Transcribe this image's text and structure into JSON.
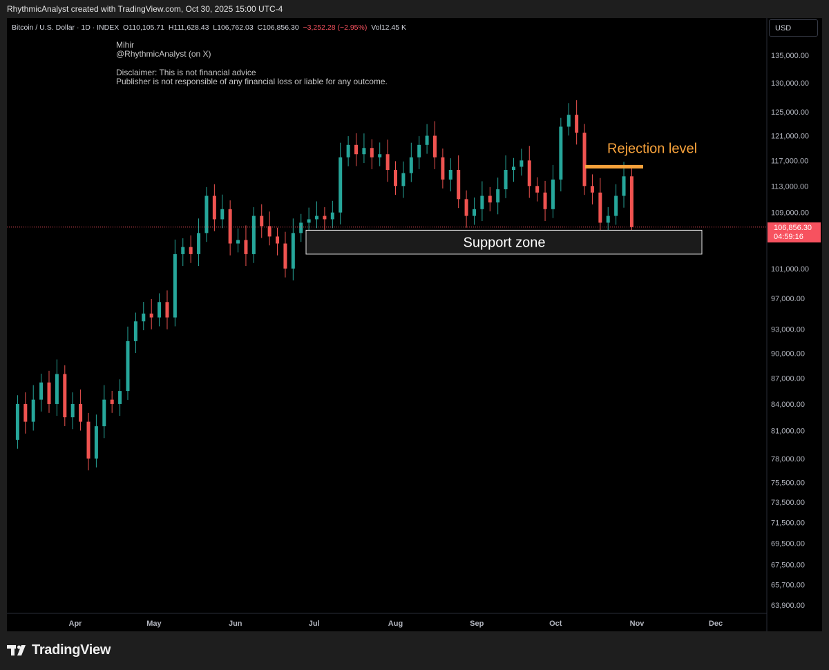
{
  "caption": "RhythmicAnalyst created with TradingView.com, Oct 30, 2025 15:00 UTC-4",
  "header": {
    "symbol": "Bitcoin / U.S. Dollar · 1D · INDEX",
    "o_label": "O",
    "open": "110,105.71",
    "h_label": "H",
    "high": "111,628.43",
    "l_label": "L",
    "low": "106,762.03",
    "c_label": "C",
    "close": "106,856.30",
    "change": "−3,252.28 (−2.95%)",
    "vol_label": "Vol",
    "volume": "12.45 K"
  },
  "notes": {
    "author": "Mihir",
    "handle": "@RhythmicAnalyst (on X)",
    "disclaimer1": "Disclaimer: This is not financial advice",
    "disclaimer2": "Publisher is not responsible of any financial loss or liable for any outcome."
  },
  "currency": "USD",
  "price_tag": {
    "price": "106,856.30",
    "countdown": "04:59:16"
  },
  "annotations": {
    "support": "Support zone",
    "rejection": "Rejection level"
  },
  "footer": {
    "brand": "TradingView",
    "logo_icon": "tradingview-logo-icon"
  },
  "colors": {
    "up": "#26a69a",
    "down": "#ef5350",
    "accent": "#f7a23b",
    "price_line": "#f7525f"
  },
  "chart_data": {
    "type": "candlestick",
    "scale": "log",
    "y_ticks": [
      135000,
      130000,
      125000,
      121000,
      117000,
      113000,
      109000,
      101000,
      97000,
      93000,
      90000,
      87000,
      84000,
      81000,
      78000,
      75500,
      73500,
      71500,
      69500,
      67500,
      65700,
      63900
    ],
    "y_tick_labels": [
      "135,000.00",
      "130,000.00",
      "125,000.00",
      "121,000.00",
      "117,000.00",
      "113,000.00",
      "109,000.00",
      "101,000.00",
      "97,000.00",
      "93,000.00",
      "90,000.00",
      "87,000.00",
      "84,000.00",
      "81,000.00",
      "78,000.00",
      "75,500.00",
      "73,500.00",
      "71,500.00",
      "69,500.00",
      "67,500.00",
      "65,700.00",
      "63,900.00"
    ],
    "x_ticks": [
      "Apr",
      "May",
      "Jun",
      "Jul",
      "Aug",
      "Sep",
      "Oct",
      "Nov",
      "Dec"
    ],
    "last_price": 106856.3,
    "support_zone": [
      103000,
      106400
    ],
    "rejection_level": 116000,
    "series": [
      {
        "x": "2025-03-10",
        "o": 80000,
        "c": 84000
      },
      {
        "x": "2025-03-13",
        "o": 84000,
        "c": 82000
      },
      {
        "x": "2025-03-16",
        "o": 82000,
        "c": 84500
      },
      {
        "x": "2025-03-19",
        "o": 84500,
        "c": 86500
      },
      {
        "x": "2025-03-22",
        "o": 86500,
        "c": 84000
      },
      {
        "x": "2025-03-25",
        "o": 84000,
        "c": 87500
      },
      {
        "x": "2025-03-28",
        "o": 87500,
        "c": 82500
      },
      {
        "x": "2025-03-31",
        "o": 82500,
        "c": 84000
      },
      {
        "x": "2025-04-03",
        "o": 84000,
        "c": 82000
      },
      {
        "x": "2025-04-06",
        "o": 82000,
        "c": 78000
      },
      {
        "x": "2025-04-09",
        "o": 78000,
        "c": 81500
      },
      {
        "x": "2025-04-12",
        "o": 81500,
        "c": 84500
      },
      {
        "x": "2025-04-15",
        "o": 84500,
        "c": 84000
      },
      {
        "x": "2025-04-18",
        "o": 84000,
        "c": 85500
      },
      {
        "x": "2025-04-21",
        "o": 85500,
        "c": 91500
      },
      {
        "x": "2025-04-24",
        "o": 91500,
        "c": 94000
      },
      {
        "x": "2025-04-27",
        "o": 94000,
        "c": 95000
      },
      {
        "x": "2025-04-30",
        "o": 95000,
        "c": 94500
      },
      {
        "x": "2025-05-03",
        "o": 94500,
        "c": 96500
      },
      {
        "x": "2025-05-06",
        "o": 96500,
        "c": 94500
      },
      {
        "x": "2025-05-09",
        "o": 94500,
        "c": 103000
      },
      {
        "x": "2025-05-12",
        "o": 103000,
        "c": 104000
      },
      {
        "x": "2025-05-15",
        "o": 104000,
        "c": 103000
      },
      {
        "x": "2025-05-18",
        "o": 103000,
        "c": 106000
      },
      {
        "x": "2025-05-21",
        "o": 106000,
        "c": 111500
      },
      {
        "x": "2025-05-24",
        "o": 111500,
        "c": 108000
      },
      {
        "x": "2025-05-27",
        "o": 108000,
        "c": 109500
      },
      {
        "x": "2025-05-30",
        "o": 109500,
        "c": 104500
      },
      {
        "x": "2025-06-02",
        "o": 104500,
        "c": 105000
      },
      {
        "x": "2025-06-05",
        "o": 105000,
        "c": 103000
      },
      {
        "x": "2025-06-08",
        "o": 103000,
        "c": 108500
      },
      {
        "x": "2025-06-11",
        "o": 108500,
        "c": 107000
      },
      {
        "x": "2025-06-14",
        "o": 107000,
        "c": 105500
      },
      {
        "x": "2025-06-17",
        "o": 105500,
        "c": 104500
      },
      {
        "x": "2025-06-20",
        "o": 104500,
        "c": 101000
      },
      {
        "x": "2025-06-23",
        "o": 101000,
        "c": 106000
      },
      {
        "x": "2025-06-26",
        "o": 106000,
        "c": 107500
      },
      {
        "x": "2025-06-29",
        "o": 107500,
        "c": 108000
      },
      {
        "x": "2025-07-02",
        "o": 108000,
        "c": 108500
      },
      {
        "x": "2025-07-05",
        "o": 108500,
        "c": 108000
      },
      {
        "x": "2025-07-08",
        "o": 108000,
        "c": 109000
      },
      {
        "x": "2025-07-11",
        "o": 109000,
        "c": 117500
      },
      {
        "x": "2025-07-14",
        "o": 117500,
        "c": 119500
      },
      {
        "x": "2025-07-17",
        "o": 119500,
        "c": 118000
      },
      {
        "x": "2025-07-20",
        "o": 118000,
        "c": 119000
      },
      {
        "x": "2025-07-23",
        "o": 119000,
        "c": 117500
      },
      {
        "x": "2025-07-26",
        "o": 117500,
        "c": 118000
      },
      {
        "x": "2025-07-29",
        "o": 118000,
        "c": 115500
      },
      {
        "x": "2025-08-01",
        "o": 115500,
        "c": 113000
      },
      {
        "x": "2025-08-04",
        "o": 113000,
        "c": 115000
      },
      {
        "x": "2025-08-07",
        "o": 115000,
        "c": 117500
      },
      {
        "x": "2025-08-10",
        "o": 117500,
        "c": 119500
      },
      {
        "x": "2025-08-13",
        "o": 119500,
        "c": 121000
      },
      {
        "x": "2025-08-16",
        "o": 121000,
        "c": 117500
      },
      {
        "x": "2025-08-19",
        "o": 117500,
        "c": 114000
      },
      {
        "x": "2025-08-22",
        "o": 114000,
        "c": 115500
      },
      {
        "x": "2025-08-25",
        "o": 115500,
        "c": 111000
      },
      {
        "x": "2025-08-28",
        "o": 111000,
        "c": 108500
      },
      {
        "x": "2025-08-31",
        "o": 108500,
        "c": 109500
      },
      {
        "x": "2025-09-03",
        "o": 109500,
        "c": 111500
      },
      {
        "x": "2025-09-06",
        "o": 111500,
        "c": 110500
      },
      {
        "x": "2025-09-09",
        "o": 110500,
        "c": 112500
      },
      {
        "x": "2025-09-12",
        "o": 112500,
        "c": 115500
      },
      {
        "x": "2025-09-15",
        "o": 115500,
        "c": 116000
      },
      {
        "x": "2025-09-18",
        "o": 116000,
        "c": 117000
      },
      {
        "x": "2025-09-21",
        "o": 117000,
        "c": 113000
      },
      {
        "x": "2025-09-24",
        "o": 113000,
        "c": 112000
      },
      {
        "x": "2025-09-27",
        "o": 112000,
        "c": 109500
      },
      {
        "x": "2025-09-30",
        "o": 109500,
        "c": 114000
      },
      {
        "x": "2025-10-03",
        "o": 114000,
        "c": 122500
      },
      {
        "x": "2025-10-06",
        "o": 122500,
        "c": 124500
      },
      {
        "x": "2025-10-09",
        "o": 124500,
        "c": 121500
      },
      {
        "x": "2025-10-12",
        "o": 121500,
        "c": 113000
      },
      {
        "x": "2025-10-15",
        "o": 113000,
        "c": 112000
      },
      {
        "x": "2025-10-18",
        "o": 112000,
        "c": 107500
      },
      {
        "x": "2025-10-21",
        "o": 107500,
        "c": 108500
      },
      {
        "x": "2025-10-24",
        "o": 108500,
        "c": 111500
      },
      {
        "x": "2025-10-27",
        "o": 111500,
        "c": 114500
      },
      {
        "x": "2025-10-30",
        "o": 114500,
        "c": 106856
      }
    ]
  }
}
